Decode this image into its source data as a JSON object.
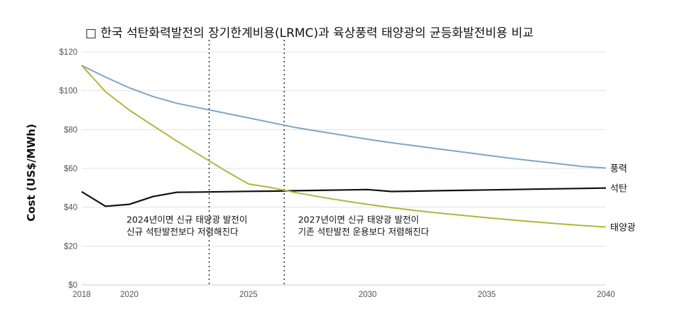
{
  "chart_data": {
    "type": "line",
    "title": "□ 한국 석탄화력발전의 장기한계비용(LRMC)과 육상풍력 태양광의 균등화발전비용 비교",
    "ylabel": "Cost (US$/MWh)",
    "xlim": [
      2018,
      2040
    ],
    "ylim": [
      0,
      120
    ],
    "x_ticks": [
      2018,
      2020,
      2025,
      2030,
      2035,
      2040
    ],
    "y_ticks": [
      0,
      20,
      40,
      60,
      80,
      100,
      120
    ],
    "y_tick_labels": [
      "$0",
      "$20",
      "$40",
      "$60",
      "$80",
      "$100",
      "$120"
    ],
    "grid": true,
    "series": [
      {
        "name": "풍력",
        "color": "#7fa6c6",
        "points": [
          [
            2018,
            113
          ],
          [
            2019,
            107
          ],
          [
            2020,
            101.5
          ],
          [
            2021,
            97
          ],
          [
            2022,
            93.5
          ],
          [
            2023,
            91
          ],
          [
            2024,
            88.5
          ],
          [
            2025,
            86
          ],
          [
            2026,
            83.5
          ],
          [
            2027,
            81
          ],
          [
            2028,
            79
          ],
          [
            2029,
            77
          ],
          [
            2030,
            75
          ],
          [
            2031,
            73.2
          ],
          [
            2032,
            71.6
          ],
          [
            2033,
            70
          ],
          [
            2034,
            68.4
          ],
          [
            2035,
            66.8
          ],
          [
            2036,
            65.2
          ],
          [
            2037,
            63.8
          ],
          [
            2038,
            62.4
          ],
          [
            2039,
            61
          ],
          [
            2040,
            60.2
          ]
        ]
      },
      {
        "name": "석탄",
        "color": "#111111",
        "points": [
          [
            2018,
            48
          ],
          [
            2019,
            40.5
          ],
          [
            2020,
            41.5
          ],
          [
            2021,
            45.5
          ],
          [
            2022,
            47.7
          ],
          [
            2023,
            47.8
          ],
          [
            2024,
            48
          ],
          [
            2025,
            48.2
          ],
          [
            2026,
            48.3
          ],
          [
            2027,
            48.5
          ],
          [
            2028,
            48.7
          ],
          [
            2029,
            48.9
          ],
          [
            2030,
            49.1
          ],
          [
            2031,
            48.1
          ],
          [
            2032,
            48.3
          ],
          [
            2033,
            48.5
          ],
          [
            2034,
            48.7
          ],
          [
            2035,
            48.9
          ],
          [
            2036,
            49.1
          ],
          [
            2037,
            49.3
          ],
          [
            2038,
            49.5
          ],
          [
            2039,
            49.7
          ],
          [
            2040,
            49.9
          ]
        ]
      },
      {
        "name": "태양광",
        "color": "#b5b43c",
        "points": [
          [
            2018,
            113
          ],
          [
            2019,
            99.5
          ],
          [
            2020,
            90
          ],
          [
            2021,
            82
          ],
          [
            2022,
            74
          ],
          [
            2023,
            66.5
          ],
          [
            2024,
            59
          ],
          [
            2025,
            52
          ],
          [
            2026,
            50
          ],
          [
            2027,
            47.5
          ],
          [
            2028,
            45.3
          ],
          [
            2029,
            43.3
          ],
          [
            2030,
            41.5
          ],
          [
            2031,
            39.8
          ],
          [
            2032,
            38.3
          ],
          [
            2033,
            37
          ],
          [
            2034,
            35.8
          ],
          [
            2035,
            34.6
          ],
          [
            2036,
            33.5
          ],
          [
            2037,
            32.5
          ],
          [
            2038,
            31.5
          ],
          [
            2039,
            30.6
          ],
          [
            2040,
            29.8
          ]
        ]
      }
    ],
    "vertical_markers": [
      2023.35,
      2026.5
    ],
    "annotations": [
      {
        "x": 2020,
        "y": 32,
        "lines": [
          "2024년이면 신규 태양광 발전이",
          "신규 석탄발전보다 저렴해진다"
        ]
      },
      {
        "x": 2027.2,
        "y": 32,
        "lines": [
          "2027년이면 신규 태양광 발전이",
          "기존 석탄발전 운용보다 저렴해진다"
        ]
      }
    ]
  }
}
